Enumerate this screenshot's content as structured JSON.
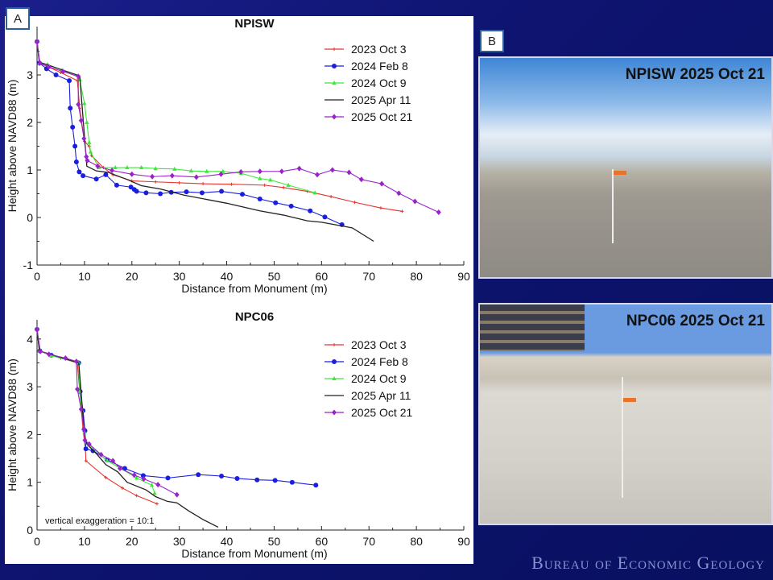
{
  "panel_labels": {
    "a": "A",
    "b": "B"
  },
  "photos": [
    {
      "caption": "NPISW 2025 Oct 21"
    },
    {
      "caption": "NPC06 2025 Oct 21"
    }
  ],
  "footer": "Bureau of Economic Geology",
  "chart_data": [
    {
      "type": "line",
      "title": "NPISW",
      "xlabel": "Distance from Monument (m)",
      "ylabel": "Height above NAVD88 (m)",
      "xlim": [
        0,
        90
      ],
      "ylim": [
        -1,
        3.9
      ],
      "xticks": [
        0,
        10,
        20,
        30,
        40,
        50,
        60,
        70,
        80,
        90
      ],
      "yticks": [
        -1,
        0,
        1,
        2,
        3
      ],
      "grid": false,
      "legend": "top-right",
      "annotation": "",
      "series": [
        {
          "name": "2023 Oct 3",
          "color": "#e8322a",
          "marker": "plus",
          "points": [
            [
              0,
              3.7
            ],
            [
              0.5,
              3.25
            ],
            [
              5,
              3.05
            ],
            [
              8.5,
              2.88
            ],
            [
              9,
              2.3
            ],
            [
              10,
              1.6
            ],
            [
              11,
              1.5
            ],
            [
              11.5,
              1.3
            ],
            [
              14,
              1.05
            ],
            [
              16,
              0.9
            ],
            [
              20,
              0.77
            ],
            [
              25,
              0.75
            ],
            [
              30,
              0.73
            ],
            [
              35,
              0.71
            ],
            [
              41,
              0.7
            ],
            [
              48,
              0.68
            ],
            [
              52,
              0.63
            ],
            [
              57,
              0.55
            ],
            [
              62,
              0.44
            ],
            [
              67,
              0.32
            ],
            [
              72.5,
              0.2
            ],
            [
              77,
              0.13
            ]
          ]
        },
        {
          "name": "2024 Feb 8",
          "color": "#1a1ee0",
          "marker": "circle",
          "points": [
            [
              0,
              3.7
            ],
            [
              0.5,
              3.25
            ],
            [
              2,
              3.13
            ],
            [
              4,
              3
            ],
            [
              6.8,
              2.88
            ],
            [
              7,
              2.3
            ],
            [
              7.5,
              1.9
            ],
            [
              8,
              1.5
            ],
            [
              8.3,
              1.17
            ],
            [
              8.9,
              0.96
            ],
            [
              9.7,
              0.88
            ],
            [
              12.5,
              0.81
            ],
            [
              14.5,
              0.9
            ],
            [
              16.8,
              0.68
            ],
            [
              19.8,
              0.64
            ],
            [
              20.5,
              0.59
            ],
            [
              21,
              0.55
            ],
            [
              23,
              0.52
            ],
            [
              26,
              0.5
            ],
            [
              28.3,
              0.53
            ],
            [
              31.5,
              0.54
            ],
            [
              34.8,
              0.52
            ],
            [
              38.9,
              0.55
            ],
            [
              43.3,
              0.49
            ],
            [
              47,
              0.39
            ],
            [
              50.3,
              0.31
            ],
            [
              53.6,
              0.24
            ],
            [
              57.6,
              0.14
            ],
            [
              60.7,
              0.01
            ],
            [
              64.3,
              -0.15
            ]
          ]
        },
        {
          "name": "2024 Oct 9",
          "color": "#3ee83a",
          "marker": "triangle",
          "points": [
            [
              0,
              3.7
            ],
            [
              0.5,
              3.25
            ],
            [
              2.2,
              3.22
            ],
            [
              5.3,
              3.1
            ],
            [
              8.8,
              2.95
            ],
            [
              9,
              2.9
            ],
            [
              10,
              2.4
            ],
            [
              10.5,
              2
            ],
            [
              11,
              1.58
            ],
            [
              11.3,
              1.38
            ],
            [
              13,
              1.05
            ],
            [
              16.5,
              1.05
            ],
            [
              19,
              1.05
            ],
            [
              22,
              1.05
            ],
            [
              25,
              1.03
            ],
            [
              29,
              1.02
            ],
            [
              32.5,
              0.98
            ],
            [
              35.8,
              0.97
            ],
            [
              39.2,
              0.97
            ],
            [
              43,
              0.93
            ],
            [
              47,
              0.82
            ],
            [
              49.2,
              0.79
            ],
            [
              53,
              0.68
            ],
            [
              58.6,
              0.52
            ]
          ]
        },
        {
          "name": "2025 Apr 11",
          "color": "#222222",
          "marker": "none",
          "points": [
            [
              0,
              3.7
            ],
            [
              0.5,
              3.27
            ],
            [
              9,
              2.98
            ],
            [
              10.5,
              1.08
            ],
            [
              12.5,
              0.98
            ],
            [
              15,
              0.95
            ],
            [
              19,
              0.8
            ],
            [
              22,
              0.67
            ],
            [
              26,
              0.6
            ],
            [
              31,
              0.47
            ],
            [
              40,
              0.3
            ],
            [
              47,
              0.14
            ],
            [
              52,
              0.05
            ],
            [
              57,
              -0.07
            ],
            [
              60,
              -0.1
            ],
            [
              65,
              -0.19
            ],
            [
              66.5,
              -0.22
            ],
            [
              71,
              -0.5
            ]
          ]
        },
        {
          "name": "2025 Oct 21",
          "color": "#9a22c8",
          "marker": "diamond",
          "points": [
            [
              0,
              3.7
            ],
            [
              0.6,
              3.25
            ],
            [
              2.5,
              3.17
            ],
            [
              5.5,
              3.07
            ],
            [
              8.7,
              2.97
            ],
            [
              8.7,
              2.38
            ],
            [
              9.3,
              2.04
            ],
            [
              9.9,
              1.66
            ],
            [
              10.4,
              1.28
            ],
            [
              10.6,
              1.2
            ],
            [
              12.8,
              1.08
            ],
            [
              15.8,
              0.99
            ],
            [
              20,
              0.91
            ],
            [
              24.3,
              0.86
            ],
            [
              28.5,
              0.88
            ],
            [
              33.6,
              0.85
            ],
            [
              38.8,
              0.91
            ],
            [
              43,
              0.96
            ],
            [
              47,
              0.97
            ],
            [
              51.6,
              0.97
            ],
            [
              55.3,
              1.03
            ],
            [
              59.1,
              0.9
            ],
            [
              62.3,
              1
            ],
            [
              65.8,
              0.95
            ],
            [
              68.4,
              0.8
            ],
            [
              72.7,
              0.71
            ],
            [
              76.3,
              0.51
            ],
            [
              79.7,
              0.34
            ],
            [
              84.7,
              0.11
            ]
          ]
        }
      ]
    },
    {
      "type": "line",
      "title": "NPC06",
      "xlabel": "Distance from Monument (m)",
      "ylabel": "Height above NAVD88 (m)",
      "xlim": [
        0,
        90
      ],
      "ylim": [
        0,
        4.4
      ],
      "xticks": [
        0,
        10,
        20,
        30,
        40,
        50,
        60,
        70,
        80,
        90
      ],
      "yticks": [
        0,
        1,
        2,
        3,
        4
      ],
      "grid": false,
      "legend": "top-right",
      "annotation": "vertical exaggeration = 10:1",
      "series": [
        {
          "name": "2023 Oct 3",
          "color": "#e8322a",
          "marker": "plus",
          "points": [
            [
              0,
              4.2
            ],
            [
              0.5,
              3.75
            ],
            [
              5,
              3.6
            ],
            [
              8.5,
              3.5
            ],
            [
              9,
              2.9
            ],
            [
              9.7,
              2.1
            ],
            [
              10.2,
              1.7
            ],
            [
              10.3,
              1.45
            ],
            [
              14.5,
              1.1
            ],
            [
              18,
              0.88
            ],
            [
              21,
              0.72
            ],
            [
              25.3,
              0.55
            ]
          ]
        },
        {
          "name": "2024 Feb 8",
          "color": "#1a1ee0",
          "marker": "circle",
          "points": [
            [
              0,
              4.2
            ],
            [
              0.6,
              3.75
            ],
            [
              3,
              3.66
            ],
            [
              8.8,
              3.5
            ],
            [
              9.1,
              2.9
            ],
            [
              9.7,
              2.5
            ],
            [
              10.1,
              2.08
            ],
            [
              10.3,
              1.7
            ],
            [
              11.8,
              1.66
            ],
            [
              14.8,
              1.47
            ],
            [
              18.5,
              1.29
            ],
            [
              22.4,
              1.14
            ],
            [
              27.6,
              1.09
            ],
            [
              34,
              1.16
            ],
            [
              38.9,
              1.13
            ],
            [
              42.2,
              1.08
            ],
            [
              46.4,
              1.05
            ],
            [
              50.2,
              1.04
            ],
            [
              53.8,
              1
            ],
            [
              58.8,
              0.94
            ]
          ]
        },
        {
          "name": "2024 Oct 9",
          "color": "#3ee83a",
          "marker": "triangle",
          "points": [
            [
              0,
              4.2
            ],
            [
              0.5,
              3.75
            ],
            [
              3,
              3.65
            ],
            [
              8.8,
              3.5
            ],
            [
              9,
              2.9
            ],
            [
              9.5,
              2.5
            ],
            [
              10,
              2.05
            ],
            [
              10.3,
              1.85
            ],
            [
              11,
              1.78
            ],
            [
              14.8,
              1.45
            ],
            [
              17.5,
              1.3
            ],
            [
              21,
              1.09
            ],
            [
              24.2,
              0.94
            ],
            [
              24.8,
              0.77
            ]
          ]
        },
        {
          "name": "2025 Apr 11",
          "color": "#222222",
          "marker": "none",
          "points": [
            [
              0,
              4.2
            ],
            [
              0.5,
              3.75
            ],
            [
              8.8,
              3.5
            ],
            [
              10,
              2.0
            ],
            [
              10.5,
              1.8
            ],
            [
              12.5,
              1.6
            ],
            [
              14.5,
              1.37
            ],
            [
              17,
              1.22
            ],
            [
              19,
              1.0
            ],
            [
              23,
              0.84
            ],
            [
              25,
              0.7
            ],
            [
              27.5,
              0.6
            ],
            [
              29.5,
              0.57
            ],
            [
              32,
              0.4
            ],
            [
              35,
              0.22
            ],
            [
              38.2,
              0.06
            ]
          ]
        },
        {
          "name": "2025 Oct 21",
          "color": "#9a22c8",
          "marker": "diamond",
          "points": [
            [
              0,
              4.2
            ],
            [
              0.7,
              3.74
            ],
            [
              2.5,
              3.68
            ],
            [
              6,
              3.6
            ],
            [
              8.3,
              3.53
            ],
            [
              8.5,
              2.95
            ],
            [
              9.3,
              2.53
            ],
            [
              9.9,
              2.12
            ],
            [
              10.1,
              1.88
            ],
            [
              11,
              1.8
            ],
            [
              13.5,
              1.58
            ],
            [
              16,
              1.45
            ],
            [
              17.5,
              1.29
            ],
            [
              20.5,
              1.15
            ],
            [
              22.5,
              1.07
            ],
            [
              25.5,
              0.95
            ],
            [
              29.5,
              0.74
            ]
          ]
        }
      ]
    }
  ]
}
